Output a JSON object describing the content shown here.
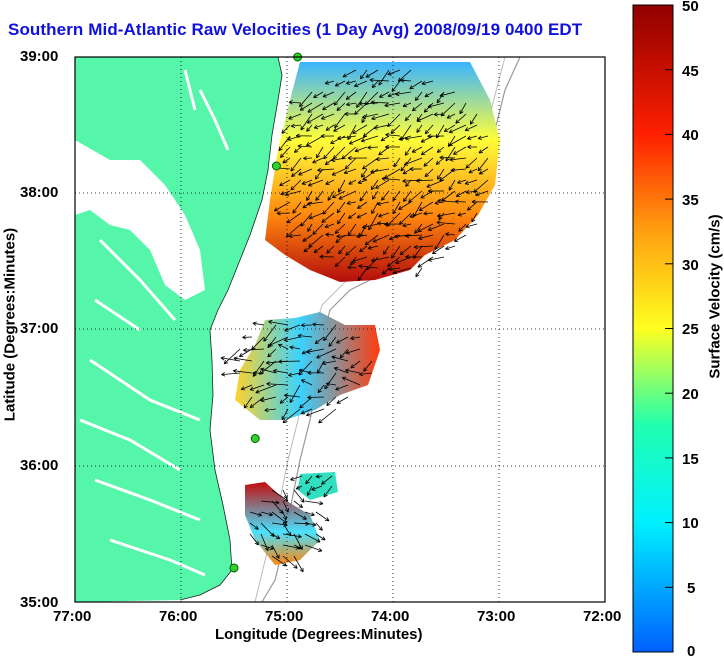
{
  "title": "Southern Mid-Atlantic Raw Velocities (1 Day Avg) 2008/09/19 0400 EDT",
  "xlabel": "Longitude (Degrees:Minutes)",
  "ylabel": "Latitude (Degrees:Minutes)",
  "xticks": [
    "77:00",
    "76:00",
    "75:00",
    "74:00",
    "73:00",
    "72:00"
  ],
  "yticks": [
    "39:00",
    "38:00",
    "37:00",
    "36:00",
    "35:00"
  ],
  "colorbar": {
    "label": "Surface Velocity (cm/s)",
    "ticks": [
      "50",
      "45",
      "40",
      "35",
      "30",
      "25",
      "20",
      "15",
      "10",
      "5",
      "0"
    ],
    "min": 0,
    "max": 50,
    "units": "cm/s"
  },
  "colors": {
    "land": "#55f5aa",
    "ocean": "#ffffff",
    "title": "#1010e0",
    "vectors": "#000000"
  },
  "stations": [
    {
      "lon": -74.9,
      "lat": 39.0
    },
    {
      "lon": -75.1,
      "lat": 38.2
    },
    {
      "lon": -75.3,
      "lat": 36.2
    },
    {
      "lon": -75.5,
      "lat": 35.25
    }
  ]
}
